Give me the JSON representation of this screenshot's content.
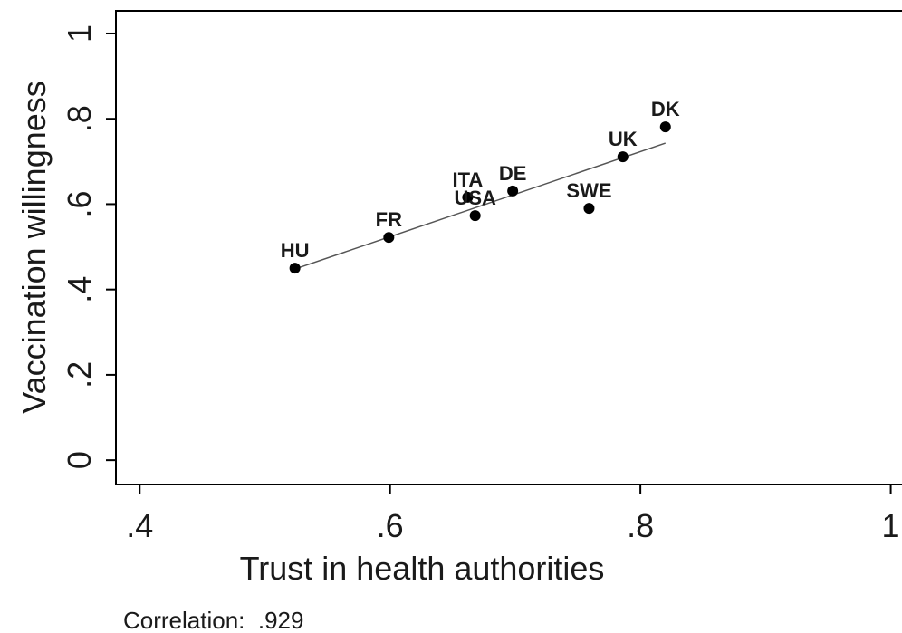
{
  "chart_data": {
    "type": "scatter",
    "xlabel": "Trust in health authorities",
    "ylabel": "Vaccination willingness",
    "annotation": "Correlation:  .929",
    "labels": [
      "HU",
      "FR",
      "ITA",
      "USA",
      "DE",
      "SWE",
      "UK",
      "DK"
    ],
    "x": [
      0.524,
      0.599,
      0.662,
      0.668,
      0.698,
      0.759,
      0.786,
      0.82
    ],
    "y": [
      0.45,
      0.522,
      0.616,
      0.573,
      0.631,
      0.59,
      0.711,
      0.781
    ],
    "color": "#000000",
    "fit_line": {
      "x": [
        0.524,
        0.82
      ],
      "y": [
        0.448,
        0.743
      ],
      "color": "#555555"
    },
    "xlim": [
      0.381,
      1.009
    ],
    "ylim": [
      -0.057,
      1.053
    ],
    "xticks": [
      {
        "value": 0.4,
        "label": ".4"
      },
      {
        "value": 0.6,
        "label": ".6"
      },
      {
        "value": 0.8,
        "label": ".8"
      },
      1
    ],
    "yticks": [
      0,
      {
        "value": 0.2,
        "label": ".2"
      },
      {
        "value": 0.4,
        "label": ".4"
      },
      {
        "value": 0.6,
        "label": ".6"
      },
      {
        "value": 0.8,
        "label": ".8"
      },
      1
    ]
  }
}
